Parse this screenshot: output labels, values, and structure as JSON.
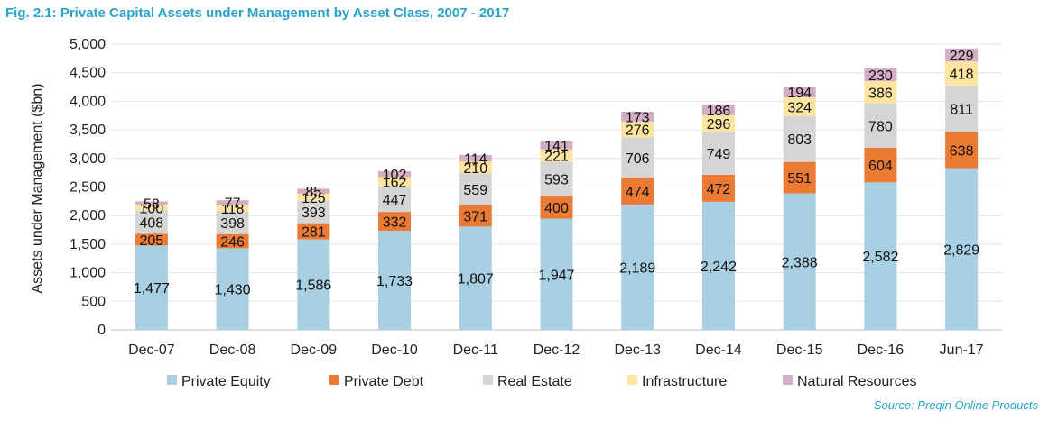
{
  "title": "Fig. 2.1: Private Capital Assets under Management by Asset Class, 2007 - 2017",
  "source": "Source: Preqin Online Products",
  "chart_data": {
    "type": "bar",
    "stacked": true,
    "ylabel": "Assets under Management ($bn)",
    "xlabel": "",
    "ylim": [
      0,
      5000
    ],
    "yticks": [
      0,
      500,
      1000,
      1500,
      2000,
      2500,
      3000,
      3500,
      4000,
      4500,
      5000
    ],
    "ytick_labels": [
      "0",
      "500",
      "1,000",
      "1,500",
      "2,000",
      "2,500",
      "3,000",
      "3,500",
      "4,000",
      "4,500",
      "5,000"
    ],
    "grid": true,
    "legend_position": "bottom",
    "categories": [
      "Dec-07",
      "Dec-08",
      "Dec-09",
      "Dec-10",
      "Dec-11",
      "Dec-12",
      "Dec-13",
      "Dec-14",
      "Dec-15",
      "Dec-16",
      "Jun-17"
    ],
    "series": [
      {
        "name": "Private Equity",
        "color": "#a9cfe3",
        "values": [
          1477,
          1430,
          1586,
          1733,
          1807,
          1947,
          2189,
          2242,
          2388,
          2582,
          2829
        ],
        "labels": [
          "1,477",
          "1,430",
          "1,586",
          "1,733",
          "1,807",
          "1,947",
          "2,189",
          "2,242",
          "2,388",
          "2,582",
          "2,829"
        ]
      },
      {
        "name": "Private Debt",
        "color": "#ea7a34",
        "values": [
          205,
          246,
          281,
          332,
          371,
          400,
          474,
          472,
          551,
          604,
          638
        ],
        "labels": [
          "205",
          "246",
          "281",
          "332",
          "371",
          "400",
          "474",
          "472",
          "551",
          "604",
          "638"
        ]
      },
      {
        "name": "Real Estate",
        "color": "#d5d5d5",
        "values": [
          408,
          398,
          393,
          447,
          559,
          593,
          706,
          749,
          803,
          780,
          811
        ],
        "labels": [
          "408",
          "398",
          "393",
          "447",
          "559",
          "593",
          "706",
          "749",
          "803",
          "780",
          "811"
        ]
      },
      {
        "name": "Infrastructure",
        "color": "#fde4a0",
        "values": [
          100,
          118,
          125,
          162,
          210,
          221,
          276,
          296,
          324,
          386,
          418
        ],
        "labels": [
          "100",
          "118",
          "125",
          "162",
          "210",
          "221",
          "276",
          "296",
          "324",
          "386",
          "418"
        ]
      },
      {
        "name": "Natural Resources",
        "color": "#d4aec4",
        "values": [
          58,
          77,
          85,
          102,
          114,
          141,
          173,
          186,
          194,
          230,
          229
        ],
        "labels": [
          "58",
          "77",
          "85",
          "102",
          "114",
          "141",
          "173",
          "186",
          "194",
          "230",
          "229"
        ]
      }
    ]
  }
}
